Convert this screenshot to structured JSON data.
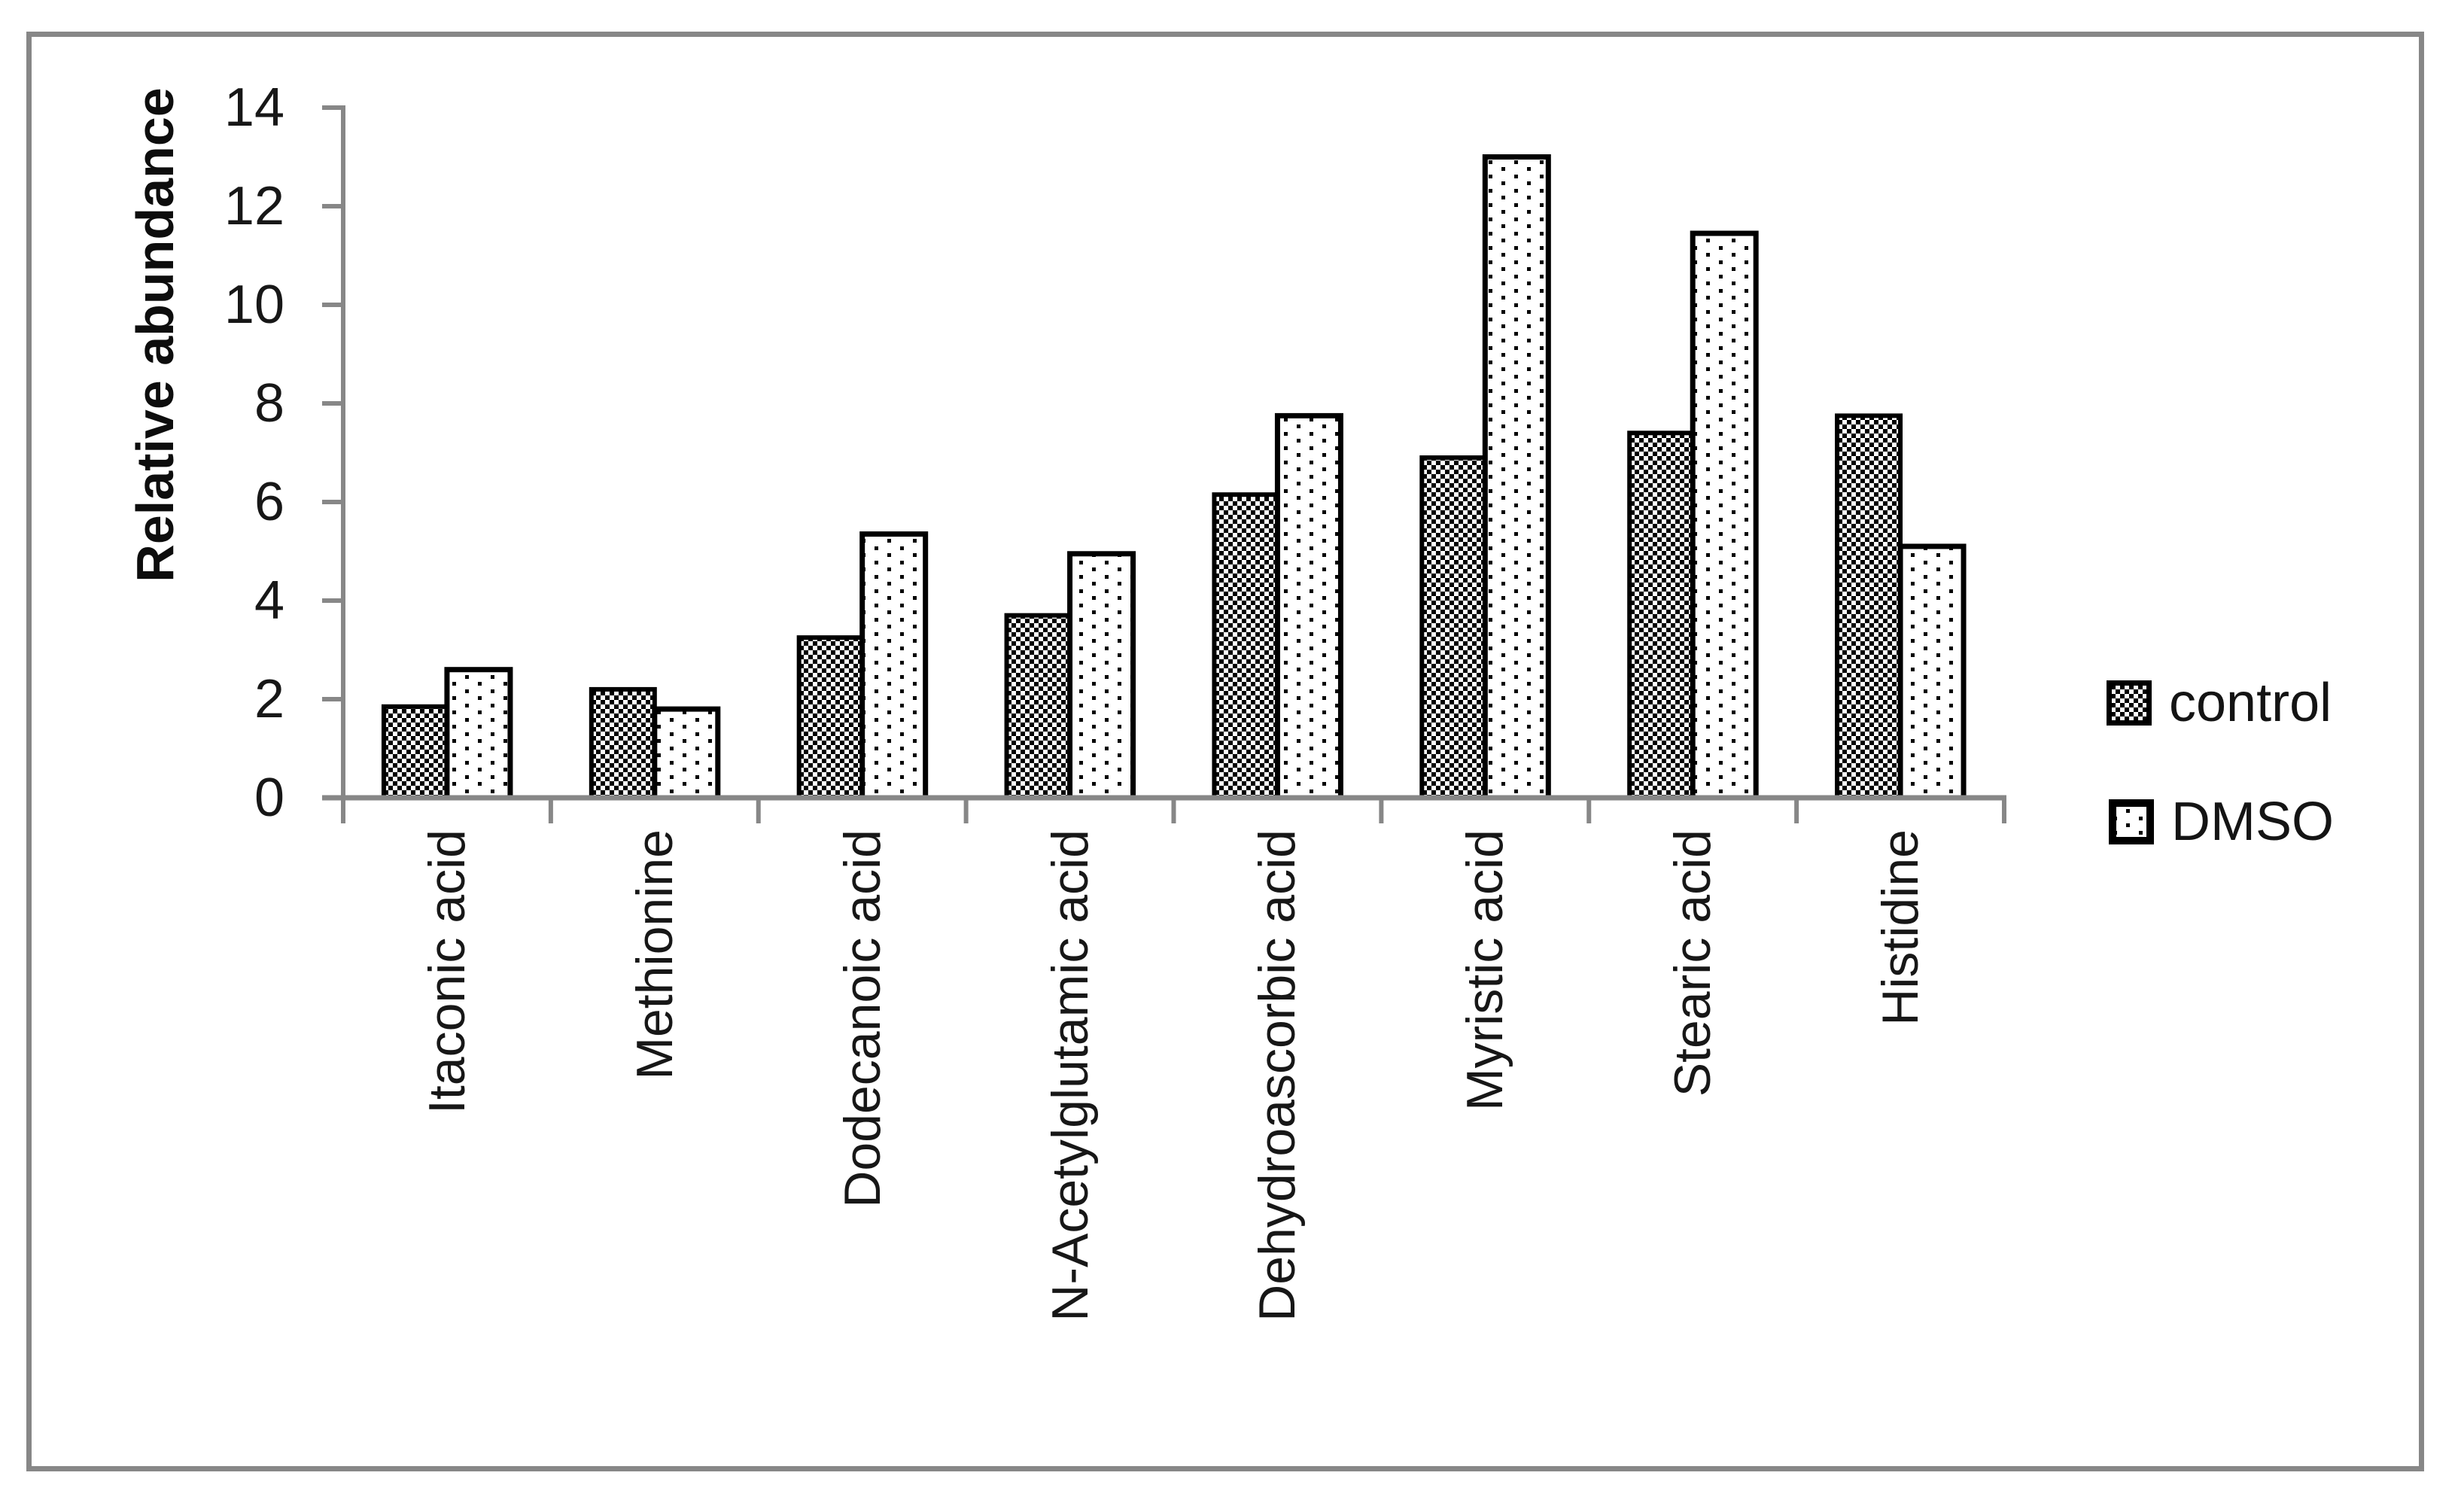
{
  "chart_data": {
    "type": "bar",
    "title": "",
    "xlabel": "",
    "ylabel": "Relative abundance",
    "categories": [
      "Itaconic acid",
      "Methionine",
      "Dodecanoic acid",
      "N-Acetylglutamic acid",
      "Dehydroascorbic acid",
      "Myristic acid",
      "Stearic acid",
      "Histidine"
    ],
    "series": [
      {
        "name": "control",
        "pattern": "checkerboard",
        "values": [
          1.85,
          2.2,
          3.25,
          3.7,
          6.15,
          6.9,
          7.4,
          7.75
        ]
      },
      {
        "name": "DMSO",
        "pattern": "dots",
        "values": [
          2.6,
          1.8,
          5.35,
          4.95,
          7.75,
          13.0,
          11.45,
          5.1
        ]
      }
    ],
    "ylim": [
      0,
      14
    ],
    "yticks": [
      0,
      2,
      4,
      6,
      8,
      10,
      12,
      14
    ],
    "grid": false,
    "legend_position": "right"
  },
  "colors": {
    "axis": "#878787",
    "frame": "#878787",
    "bar_outline": "#000000",
    "pattern_ink": "#000000",
    "background": "#ffffff",
    "text": "#171717"
  }
}
